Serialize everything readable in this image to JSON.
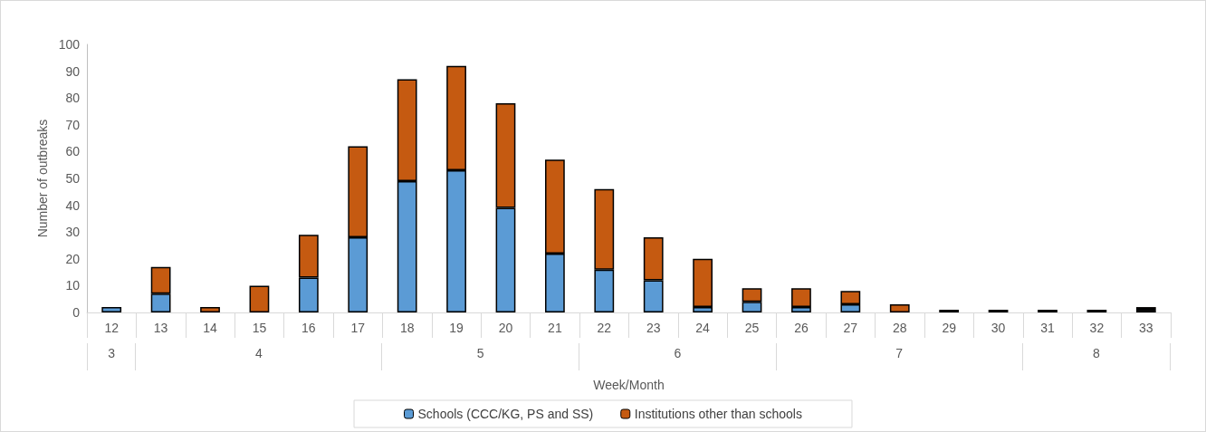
{
  "chart_data": {
    "type": "bar",
    "stacked": true,
    "xlabel": "Week/Month",
    "ylabel": "Number of outbreaks",
    "categories": [
      "12",
      "13",
      "14",
      "15",
      "16",
      "17",
      "18",
      "19",
      "20",
      "21",
      "22",
      "23",
      "24",
      "25",
      "26",
      "27",
      "28",
      "29",
      "30",
      "31",
      "32",
      "33"
    ],
    "series": [
      {
        "name": "Schools (CCC/KG, PS and SS)",
        "color": "#5b9bd5",
        "values": [
          2,
          7,
          0,
          0,
          13,
          28,
          49,
          53,
          39,
          22,
          16,
          12,
          2,
          4,
          2,
          3,
          0,
          0,
          0,
          0,
          0,
          1
        ]
      },
      {
        "name": "Institutions other than schools",
        "color": "#c55a11",
        "values": [
          0,
          10,
          2,
          10,
          16,
          34,
          38,
          39,
          39,
          35,
          30,
          16,
          18,
          5,
          7,
          5,
          3,
          1,
          1,
          1,
          1,
          1
        ]
      }
    ],
    "annotations": [
      "3",
      "4",
      "5",
      "6",
      "7",
      "8"
    ],
    "ylim": [
      0,
      100
    ],
    "yticks": [
      0,
      10,
      20,
      30,
      40,
      50,
      60,
      70,
      80,
      90,
      100
    ],
    "grid": false,
    "legend": "bottom"
  }
}
